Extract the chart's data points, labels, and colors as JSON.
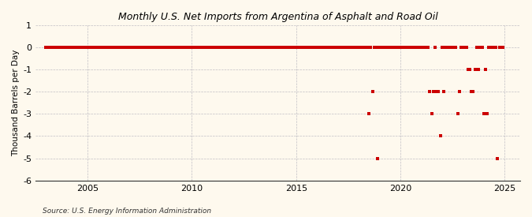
{
  "title": "Monthly U.S. Net Imports from Argentina of Asphalt and Road Oil",
  "ylabel": "Thousand Barrels per Day",
  "source": "Source: U.S. Energy Information Administration",
  "background_color": "#fef9ee",
  "plot_bg_color": "#fef9ee",
  "marker_color": "#cc0000",
  "grid_color": "#9999aa",
  "ylim": [
    -6,
    1
  ],
  "yticks": [
    1,
    0,
    -1,
    -2,
    -3,
    -4,
    -5,
    -6
  ],
  "xlim_start": 2002.5,
  "xlim_end": 2025.75,
  "xticks": [
    2005,
    2010,
    2015,
    2020,
    2025
  ],
  "data_points": [
    [
      2003.0,
      0
    ],
    [
      2003.083,
      0
    ],
    [
      2003.167,
      0
    ],
    [
      2003.25,
      0
    ],
    [
      2003.333,
      0
    ],
    [
      2003.417,
      0
    ],
    [
      2003.5,
      0
    ],
    [
      2003.583,
      0
    ],
    [
      2003.667,
      0
    ],
    [
      2003.75,
      0
    ],
    [
      2003.833,
      0
    ],
    [
      2003.917,
      0
    ],
    [
      2004.0,
      0
    ],
    [
      2004.083,
      0
    ],
    [
      2004.167,
      0
    ],
    [
      2004.25,
      0
    ],
    [
      2004.333,
      0
    ],
    [
      2004.417,
      0
    ],
    [
      2004.5,
      0
    ],
    [
      2004.583,
      0
    ],
    [
      2004.667,
      0
    ],
    [
      2004.75,
      0
    ],
    [
      2004.833,
      0
    ],
    [
      2004.917,
      0
    ],
    [
      2005.0,
      0
    ],
    [
      2005.083,
      0
    ],
    [
      2005.167,
      0
    ],
    [
      2005.25,
      0
    ],
    [
      2005.333,
      0
    ],
    [
      2005.417,
      0
    ],
    [
      2005.5,
      0
    ],
    [
      2005.583,
      0
    ],
    [
      2005.667,
      0
    ],
    [
      2005.75,
      0
    ],
    [
      2005.833,
      0
    ],
    [
      2005.917,
      0
    ],
    [
      2006.0,
      0
    ],
    [
      2006.083,
      0
    ],
    [
      2006.167,
      0
    ],
    [
      2006.25,
      0
    ],
    [
      2006.333,
      0
    ],
    [
      2006.417,
      0
    ],
    [
      2006.5,
      0
    ],
    [
      2006.583,
      0
    ],
    [
      2006.667,
      0
    ],
    [
      2006.75,
      0
    ],
    [
      2006.833,
      0
    ],
    [
      2006.917,
      0
    ],
    [
      2007.0,
      0
    ],
    [
      2007.083,
      0
    ],
    [
      2007.167,
      0
    ],
    [
      2007.25,
      0
    ],
    [
      2007.333,
      0
    ],
    [
      2007.417,
      0
    ],
    [
      2007.5,
      0
    ],
    [
      2007.583,
      0
    ],
    [
      2007.667,
      0
    ],
    [
      2007.75,
      0
    ],
    [
      2007.833,
      0
    ],
    [
      2007.917,
      0
    ],
    [
      2008.0,
      0
    ],
    [
      2008.083,
      0
    ],
    [
      2008.167,
      0
    ],
    [
      2008.25,
      0
    ],
    [
      2008.333,
      0
    ],
    [
      2008.417,
      0
    ],
    [
      2008.5,
      0
    ],
    [
      2008.583,
      0
    ],
    [
      2008.667,
      0
    ],
    [
      2008.75,
      0
    ],
    [
      2008.833,
      0
    ],
    [
      2008.917,
      0
    ],
    [
      2009.0,
      0
    ],
    [
      2009.083,
      0
    ],
    [
      2009.167,
      0
    ],
    [
      2009.25,
      0
    ],
    [
      2009.333,
      0
    ],
    [
      2009.417,
      0
    ],
    [
      2009.5,
      0
    ],
    [
      2009.583,
      0
    ],
    [
      2009.667,
      0
    ],
    [
      2009.75,
      0
    ],
    [
      2009.833,
      0
    ],
    [
      2009.917,
      0
    ],
    [
      2010.0,
      0
    ],
    [
      2010.083,
      0
    ],
    [
      2010.167,
      0
    ],
    [
      2010.25,
      0
    ],
    [
      2010.333,
      0
    ],
    [
      2010.417,
      0
    ],
    [
      2010.5,
      0
    ],
    [
      2010.583,
      0
    ],
    [
      2010.667,
      0
    ],
    [
      2010.75,
      0
    ],
    [
      2010.833,
      0
    ],
    [
      2010.917,
      0
    ],
    [
      2011.0,
      0
    ],
    [
      2011.083,
      0
    ],
    [
      2011.167,
      0
    ],
    [
      2011.25,
      0
    ],
    [
      2011.333,
      0
    ],
    [
      2011.417,
      0
    ],
    [
      2011.5,
      0
    ],
    [
      2011.583,
      0
    ],
    [
      2011.667,
      0
    ],
    [
      2011.75,
      0
    ],
    [
      2011.833,
      0
    ],
    [
      2011.917,
      0
    ],
    [
      2012.0,
      0
    ],
    [
      2012.083,
      0
    ],
    [
      2012.167,
      0
    ],
    [
      2012.25,
      0
    ],
    [
      2012.333,
      0
    ],
    [
      2012.417,
      0
    ],
    [
      2012.5,
      0
    ],
    [
      2012.583,
      0
    ],
    [
      2012.667,
      0
    ],
    [
      2012.75,
      0
    ],
    [
      2012.833,
      0
    ],
    [
      2012.917,
      0
    ],
    [
      2013.0,
      0
    ],
    [
      2013.083,
      0
    ],
    [
      2013.167,
      0
    ],
    [
      2013.25,
      0
    ],
    [
      2013.333,
      0
    ],
    [
      2013.417,
      0
    ],
    [
      2013.5,
      0
    ],
    [
      2013.583,
      0
    ],
    [
      2013.667,
      0
    ],
    [
      2013.75,
      0
    ],
    [
      2013.833,
      0
    ],
    [
      2013.917,
      0
    ],
    [
      2014.0,
      0
    ],
    [
      2014.083,
      0
    ],
    [
      2014.167,
      0
    ],
    [
      2014.25,
      0
    ],
    [
      2014.333,
      0
    ],
    [
      2014.417,
      0
    ],
    [
      2014.5,
      0
    ],
    [
      2014.583,
      0
    ],
    [
      2014.667,
      0
    ],
    [
      2014.75,
      0
    ],
    [
      2014.833,
      0
    ],
    [
      2014.917,
      0
    ],
    [
      2015.0,
      0
    ],
    [
      2015.083,
      0
    ],
    [
      2015.167,
      0
    ],
    [
      2015.25,
      0
    ],
    [
      2015.333,
      0
    ],
    [
      2015.417,
      0
    ],
    [
      2015.5,
      0
    ],
    [
      2015.583,
      0
    ],
    [
      2015.667,
      0
    ],
    [
      2015.75,
      0
    ],
    [
      2015.833,
      0
    ],
    [
      2015.917,
      0
    ],
    [
      2016.0,
      0
    ],
    [
      2016.083,
      0
    ],
    [
      2016.167,
      0
    ],
    [
      2016.25,
      0
    ],
    [
      2016.333,
      0
    ],
    [
      2016.417,
      0
    ],
    [
      2016.5,
      0
    ],
    [
      2016.583,
      0
    ],
    [
      2016.667,
      0
    ],
    [
      2016.75,
      0
    ],
    [
      2016.833,
      0
    ],
    [
      2016.917,
      0
    ],
    [
      2017.0,
      0
    ],
    [
      2017.083,
      0
    ],
    [
      2017.167,
      0
    ],
    [
      2017.25,
      0
    ],
    [
      2017.333,
      0
    ],
    [
      2017.417,
      0
    ],
    [
      2017.5,
      0
    ],
    [
      2017.583,
      0
    ],
    [
      2017.667,
      0
    ],
    [
      2017.75,
      0
    ],
    [
      2017.833,
      0
    ],
    [
      2017.917,
      0
    ],
    [
      2018.0,
      0
    ],
    [
      2018.083,
      0
    ],
    [
      2018.167,
      0
    ],
    [
      2018.25,
      0
    ],
    [
      2018.333,
      0
    ],
    [
      2018.417,
      0
    ],
    [
      2018.5,
      -3
    ],
    [
      2018.583,
      0
    ],
    [
      2018.667,
      -2
    ],
    [
      2018.75,
      0
    ],
    [
      2018.833,
      0
    ],
    [
      2018.917,
      -5
    ],
    [
      2019.0,
      0
    ],
    [
      2019.083,
      0
    ],
    [
      2019.167,
      0
    ],
    [
      2019.25,
      0
    ],
    [
      2019.333,
      0
    ],
    [
      2019.417,
      0
    ],
    [
      2019.5,
      0
    ],
    [
      2019.583,
      0
    ],
    [
      2019.667,
      0
    ],
    [
      2019.75,
      0
    ],
    [
      2019.833,
      0
    ],
    [
      2019.917,
      0
    ],
    [
      2020.0,
      0
    ],
    [
      2020.083,
      0
    ],
    [
      2020.167,
      0
    ],
    [
      2020.25,
      0
    ],
    [
      2020.333,
      0
    ],
    [
      2020.417,
      0
    ],
    [
      2020.5,
      0
    ],
    [
      2020.583,
      0
    ],
    [
      2020.667,
      0
    ],
    [
      2020.75,
      0
    ],
    [
      2020.833,
      0
    ],
    [
      2020.917,
      0
    ],
    [
      2021.0,
      0
    ],
    [
      2021.083,
      0
    ],
    [
      2021.167,
      0
    ],
    [
      2021.25,
      0
    ],
    [
      2021.333,
      0
    ],
    [
      2021.417,
      -2
    ],
    [
      2021.5,
      -3
    ],
    [
      2021.583,
      -2
    ],
    [
      2021.667,
      0
    ],
    [
      2021.75,
      -2
    ],
    [
      2021.833,
      -2
    ],
    [
      2021.917,
      -4
    ],
    [
      2022.0,
      0
    ],
    [
      2022.083,
      -2
    ],
    [
      2022.167,
      0
    ],
    [
      2022.25,
      0
    ],
    [
      2022.333,
      0
    ],
    [
      2022.417,
      0
    ],
    [
      2022.5,
      0
    ],
    [
      2022.583,
      0
    ],
    [
      2022.667,
      0
    ],
    [
      2022.75,
      -3
    ],
    [
      2022.833,
      -2
    ],
    [
      2022.917,
      0
    ],
    [
      2023.0,
      0
    ],
    [
      2023.083,
      0
    ],
    [
      2023.167,
      0
    ],
    [
      2023.25,
      -1
    ],
    [
      2023.333,
      -1
    ],
    [
      2023.417,
      -2
    ],
    [
      2023.5,
      -2
    ],
    [
      2023.583,
      -1
    ],
    [
      2023.667,
      0
    ],
    [
      2023.75,
      -1
    ],
    [
      2023.833,
      0
    ],
    [
      2023.917,
      0
    ],
    [
      2024.0,
      -3
    ],
    [
      2024.083,
      -1
    ],
    [
      2024.167,
      -3
    ],
    [
      2024.25,
      0
    ],
    [
      2024.333,
      0
    ],
    [
      2024.417,
      0
    ],
    [
      2024.5,
      0
    ],
    [
      2024.583,
      0
    ],
    [
      2024.667,
      -5
    ],
    [
      2024.75,
      0
    ],
    [
      2024.833,
      0
    ],
    [
      2024.917,
      0
    ]
  ]
}
